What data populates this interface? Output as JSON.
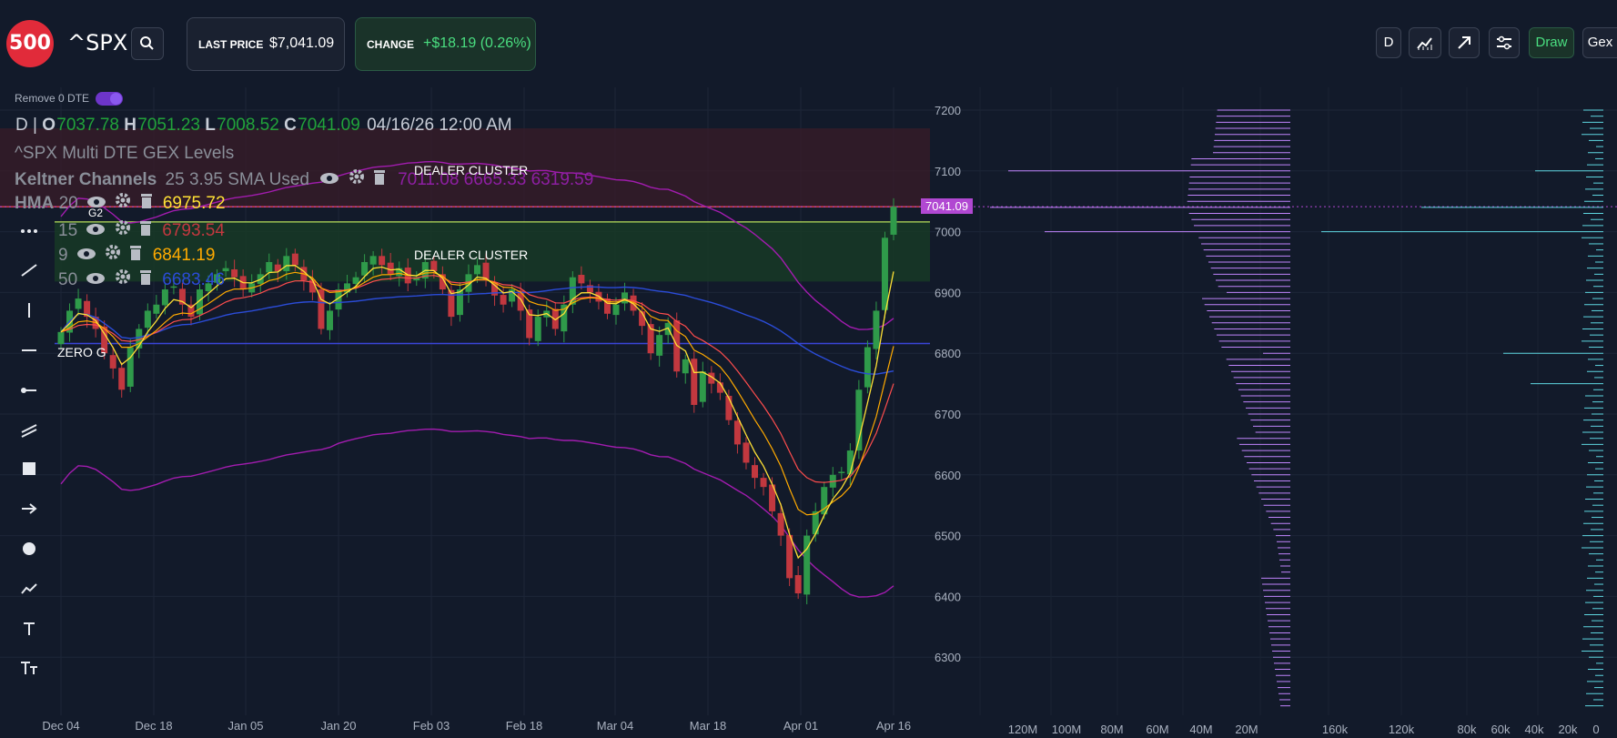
{
  "header": {
    "logo_text": "500",
    "symbol": "^SPX",
    "last_price_label": "LAST PRICE",
    "last_price_value": "$7,041.09",
    "change_label": "CHANGE",
    "change_value": "+$18.19 (0.26%)",
    "toolbar": {
      "interval": "D",
      "draw": "Draw",
      "gex": "Gex"
    }
  },
  "controls": {
    "remove_0dte_label": "Remove 0 DTE"
  },
  "ohlc": {
    "interval": "D",
    "sep": "|",
    "o_label": "O",
    "o": "7037.78",
    "h_label": "H",
    "h": "7051.23",
    "l_label": "L",
    "l": "7008.52",
    "c_label": "C",
    "c": "7041.09",
    "datetime": "04/16/26 12:00 AM"
  },
  "indicators": {
    "gex_title": "^SPX Multi DTE GEX Levels",
    "keltner_name": "Keltner Channels",
    "keltner_params": "25 3.95 SMA Used",
    "keltner_values": "7011.08 6665.33 6319.59",
    "hma_name": "HMA",
    "hma_len": "20",
    "hma_val": "6975.72",
    "hma2_len": "15",
    "hma2_val": "6793.54",
    "hma3_len": "9",
    "hma3_val": "6841.19",
    "hma4_len": "50",
    "hma4_val": "6683.46"
  },
  "labels": {
    "dealer_cluster": "DEALER CLUSTER",
    "zero_g": "ZERO G",
    "g2": "G2",
    "current_price_tag": "7041.09"
  },
  "colors": {
    "up": "#2f9a4a",
    "down": "#c2383f",
    "accent": "#7c3aed",
    "hma20": "#ffe135",
    "hma15": "#ff4d4d",
    "hma9": "#ffaa00",
    "hma50": "#2b4cd8",
    "keltner": "#a21caf",
    "gex_put": "#c084fc",
    "gex_call": "#5ed6e0"
  },
  "chart_data": {
    "type": "candlestick",
    "y_axis": {
      "min": 6200,
      "max": 7220,
      "ticks": [
        7200,
        7100,
        7000,
        6900,
        6800,
        6700,
        6600,
        6500,
        6400,
        6300
      ]
    },
    "x_tick_labels": [
      "Dec 04",
      "Dec 18",
      "Jan 05",
      "Jan 20",
      "Feb 03",
      "Feb 18",
      "Mar 04",
      "Mar 18",
      "Apr 01",
      "Apr 16"
    ],
    "levels": {
      "dealer_cluster_1": 7041,
      "zero_g": 6816,
      "dealer_cluster_2_top": 7016,
      "dealer_cluster_2_bottom": 6918
    },
    "close": [
      6835,
      6870,
      6890,
      6860,
      6840,
      6800,
      6775,
      6740,
      6810,
      6840,
      6870,
      6880,
      6905,
      6910,
      6880,
      6860,
      6905,
      6915,
      6930,
      6940,
      6925,
      6905,
      6915,
      6930,
      6950,
      6935,
      6960,
      6945,
      6920,
      6900,
      6840,
      6870,
      6905,
      6915,
      6925,
      6950,
      6960,
      6945,
      6930,
      6940,
      6915,
      6925,
      6950,
      6935,
      6905,
      6860,
      6905,
      6930,
      6945,
      6920,
      6895,
      6880,
      6905,
      6870,
      6825,
      6860,
      6870,
      6840,
      6880,
      6925,
      6915,
      6900,
      6885,
      6865,
      6880,
      6900,
      6870,
      6845,
      6800,
      6830,
      6850,
      6770,
      6790,
      6715,
      6770,
      6750,
      6735,
      6690,
      6650,
      6620,
      6595,
      6580,
      6540,
      6500,
      6430,
      6405,
      6500,
      6540,
      6580,
      6600,
      6605,
      6640,
      6740,
      6810,
      6870,
      6990,
      7041
    ],
    "gex_profile": {
      "left_x_ticks": [
        "120M",
        "100M",
        "80M",
        "60M",
        "40M",
        "20M"
      ],
      "right_x_ticks": [
        "160k",
        "120k",
        "80k",
        "60k",
        "40k",
        "20k",
        "0"
      ]
    }
  }
}
